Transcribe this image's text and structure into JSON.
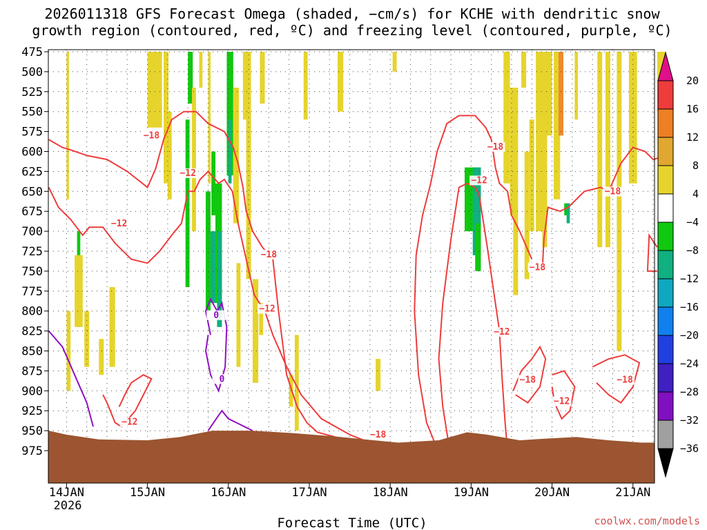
{
  "chart_data": {
    "type": "heatmap",
    "title": [
      "2026011318 GFS Forecast Omega (shaded, −cm/s) for KCHE with dendritic snow",
      "growth region (contoured, red, ºC) and freezing level (contoured, purple, ºC)"
    ],
    "xlabel": "Forecast Time (UTC)",
    "ylabel": "",
    "credit": "coolwx.com/models",
    "x_ticks": [
      "14JAN",
      "15JAN",
      "16JAN",
      "17JAN",
      "18JAN",
      "19JAN",
      "20JAN",
      "21JAN"
    ],
    "x_tick_sub": "2026",
    "y_ticks": [
      475,
      500,
      525,
      550,
      575,
      600,
      625,
      650,
      675,
      700,
      725,
      750,
      775,
      800,
      825,
      850,
      875,
      900,
      925,
      950,
      975
    ],
    "y_reversed": true,
    "grid": true,
    "colorbar": {
      "labels": [
        "20",
        "16",
        "12",
        "8",
        "4",
        "−4",
        "−8",
        "−12",
        "−16",
        "−20",
        "−24",
        "−28",
        "−32",
        "−36"
      ],
      "colors": [
        "#ee3c3c",
        "#ee7f22",
        "#e0a830",
        "#e6d42c",
        "#ffffff",
        "#10c810",
        "#10b080",
        "#10a8c0",
        "#1080ee",
        "#2040e0",
        "#4020c0",
        "#8010c0",
        "#a0a0a0"
      ],
      "top_color": "#e0108a",
      "bottom_color": "#000000"
    },
    "contour_labels": [
      {
        "text": "−18",
        "day": 15.05,
        "p": 582,
        "color": "#ee3c3c"
      },
      {
        "text": "−12",
        "day": 15.5,
        "p": 629,
        "color": "#ee3c3c"
      },
      {
        "text": "−12",
        "day": 14.65,
        "p": 692,
        "color": "#ee3c3c"
      },
      {
        "text": "−18",
        "day": 16.5,
        "p": 731,
        "color": "#ee3c3c"
      },
      {
        "text": "−12",
        "day": 16.48,
        "p": 799,
        "color": "#ee3c3c"
      },
      {
        "text": "−12",
        "day": 14.78,
        "p": 941,
        "color": "#ee3c3c"
      },
      {
        "text": "−18",
        "day": 17.85,
        "p": 957,
        "color": "#ee3c3c"
      },
      {
        "text": "−18",
        "day": 19.3,
        "p": 596,
        "color": "#ee3c3c"
      },
      {
        "text": "−12",
        "day": 19.1,
        "p": 638,
        "color": "#ee3c3c"
      },
      {
        "text": "−12",
        "day": 19.38,
        "p": 828,
        "color": "#ee3c3c"
      },
      {
        "text": "−18",
        "day": 19.82,
        "p": 747,
        "color": "#ee3c3c"
      },
      {
        "text": "−18",
        "day": 19.7,
        "p": 888,
        "color": "#ee3c3c"
      },
      {
        "text": "−12",
        "day": 20.12,
        "p": 915,
        "color": "#ee3c3c"
      },
      {
        "text": "−18",
        "day": 20.75,
        "p": 652,
        "color": "#ee3c3c"
      },
      {
        "text": "−18",
        "day": 20.9,
        "p": 888,
        "color": "#ee3c3c"
      },
      {
        "text": "0",
        "day": 15.85,
        "p": 807,
        "color": "#9010c0"
      },
      {
        "text": "0",
        "day": 15.92,
        "p": 887,
        "color": "#9010c0"
      }
    ]
  }
}
